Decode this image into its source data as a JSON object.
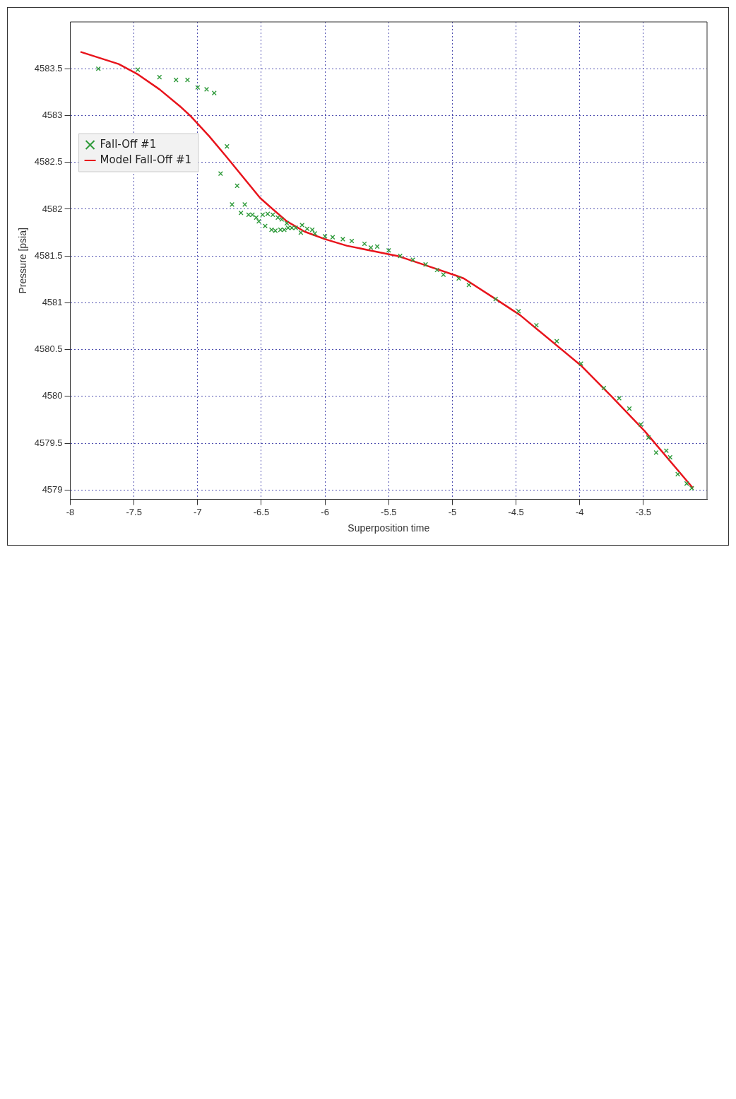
{
  "chart_data": {
    "type": "scatter",
    "xlabel": "Superposition time",
    "ylabel": "Pressure [psia]",
    "xlim": [
      -8,
      -3
    ],
    "xticks": [
      -8,
      -7.5,
      -7,
      -6.5,
      -6,
      -5.5,
      -5,
      -4.5,
      -4,
      -3.5
    ],
    "ylim": [
      4578.9,
      4584
    ],
    "yticks": [
      4579,
      4579.5,
      4580,
      4580.5,
      4581,
      4581.5,
      4582,
      4582.5,
      4583,
      4583.5
    ],
    "grid": true,
    "legend": "top left",
    "series": [
      {
        "name": "Fall-Off #1",
        "type": "scatter",
        "marker": "cross",
        "color": "#2e9a3a",
        "x": [
          -7.78,
          -7.47,
          -7.3,
          -7.17,
          -7.08,
          -7.0,
          -6.93,
          -6.87,
          -6.82,
          -6.77,
          -6.73,
          -6.69,
          -6.66,
          -6.63,
          -6.6,
          -6.57,
          -6.54,
          -6.52,
          -6.49,
          -6.47,
          -6.45,
          -6.42,
          -6.41,
          -6.39,
          -6.37,
          -6.35,
          -6.34,
          -6.32,
          -6.3,
          -6.29,
          -6.26,
          -6.23,
          -6.19,
          -6.18,
          -6.14,
          -6.1,
          -6.08,
          -6.0,
          -5.94,
          -5.86,
          -5.79,
          -5.69,
          -5.64,
          -5.59,
          -5.5,
          -5.41,
          -5.31,
          -5.21,
          -5.12,
          -5.07,
          -4.95,
          -4.87,
          -4.66,
          -4.48,
          -4.34,
          -4.18,
          -3.99,
          -3.81,
          -3.69,
          -3.61,
          -3.52,
          -3.46,
          -3.4,
          -3.32,
          -3.29,
          -3.23,
          -3.16,
          -3.12
        ],
        "values": [
          4583.5,
          4583.49,
          4583.41,
          4583.38,
          4583.38,
          4583.3,
          4583.28,
          4583.24,
          4582.38,
          4582.67,
          4582.05,
          4582.25,
          4581.96,
          4582.05,
          4581.94,
          4581.94,
          4581.91,
          4581.87,
          4581.94,
          4581.82,
          4581.95,
          4581.78,
          4581.94,
          4581.77,
          4581.91,
          4581.78,
          4581.89,
          4581.78,
          4581.85,
          4581.8,
          4581.8,
          4581.8,
          4581.75,
          4581.83,
          4581.79,
          4581.78,
          4581.74,
          4581.71,
          4581.7,
          4581.68,
          4581.66,
          4581.63,
          4581.59,
          4581.6,
          4581.56,
          4581.5,
          4581.46,
          4581.41,
          4581.35,
          4581.3,
          4581.26,
          4581.19,
          4581.04,
          4580.91,
          4580.76,
          4580.59,
          4580.35,
          4580.09,
          4579.98,
          4579.87,
          4579.7,
          4579.56,
          4579.4,
          4579.42,
          4579.35,
          4579.17,
          4579.07,
          4579.02
        ]
      },
      {
        "name": "Model Fall-Off #1",
        "type": "line",
        "marker": "none",
        "line_style": "solid",
        "color": "#e8141c",
        "x": [
          -7.92,
          -7.62,
          -7.47,
          -7.3,
          -7.14,
          -7.06,
          -6.91,
          -6.78,
          -6.51,
          -6.41,
          -6.3,
          -6.16,
          -6.0,
          -5.83,
          -5.65,
          -5.43,
          -5.23,
          -4.97,
          -4.91,
          -4.66,
          -4.47,
          -3.99,
          -3.75,
          -3.49,
          -3.11
        ],
        "values": [
          4583.68,
          4583.55,
          4583.44,
          4583.28,
          4583.1,
          4583.0,
          4582.78,
          4582.57,
          4582.12,
          4582.0,
          4581.87,
          4581.76,
          4581.68,
          4581.61,
          4581.56,
          4581.5,
          4581.41,
          4581.29,
          4581.26,
          4581.04,
          4580.87,
          4580.33,
          4580.0,
          4579.63,
          4579.02
        ]
      }
    ]
  }
}
